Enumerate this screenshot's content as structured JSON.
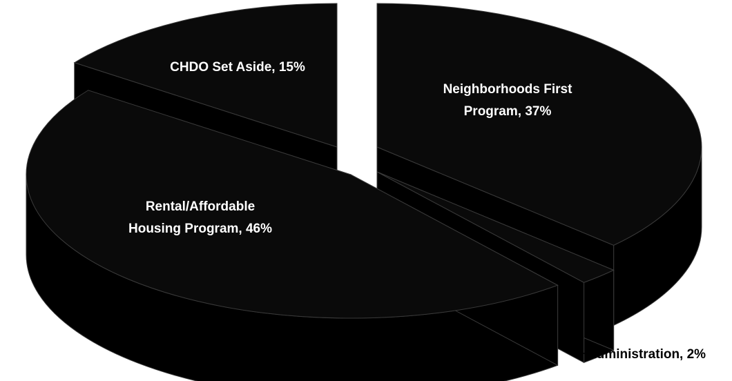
{
  "chart_data": {
    "type": "pie",
    "style": "3d-exploded",
    "categories": [
      "Neighborhoods First Program",
      "Administration",
      "Rental/Affordable Housing Program",
      "CHDO Set Aside"
    ],
    "values": [
      37,
      2,
      46,
      15
    ],
    "unit": "%",
    "labels": [
      "Neighborhoods First\nProgram, 37%",
      "Administration, 2%",
      "Rental/Affordable\nHousing Program, 46%",
      "CHDO Set Aside, 15%"
    ],
    "colors": {
      "slice_top": "#0a0a0a",
      "slice_side": "#000000",
      "edge": "#3a3a3a",
      "inner_label": "#ffffff",
      "outer_label": "#000000"
    },
    "legend": "none",
    "grid": false,
    "title": ""
  }
}
